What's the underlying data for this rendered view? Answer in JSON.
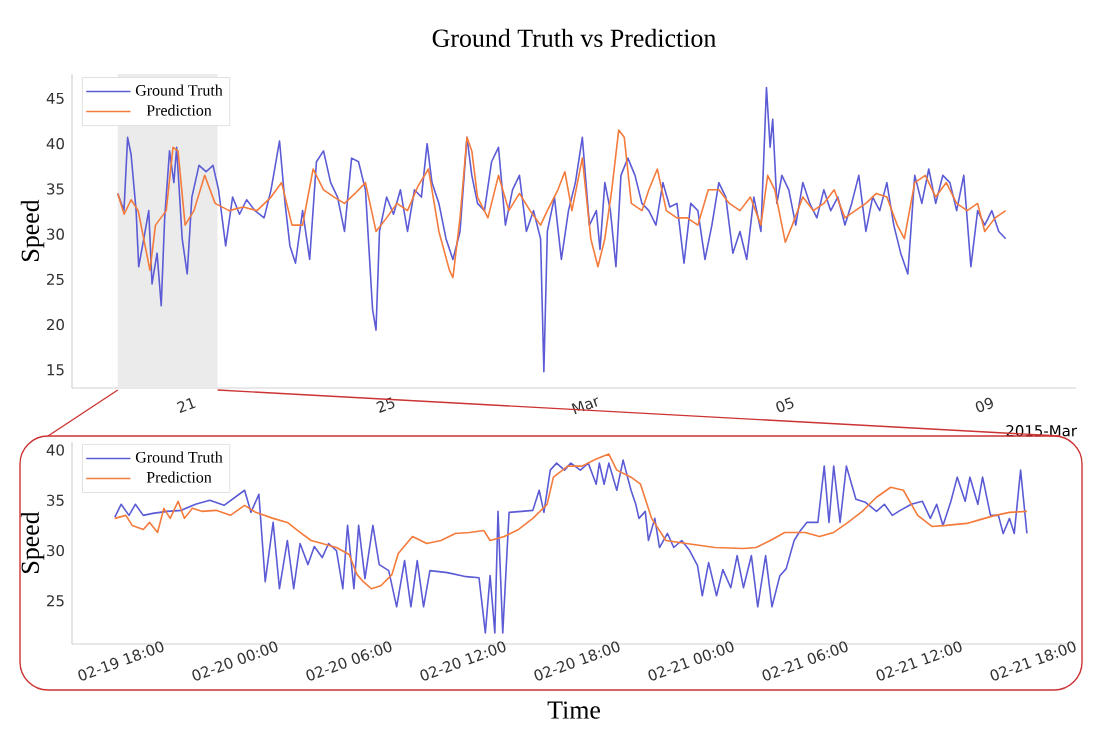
{
  "chart_data": [
    {
      "type": "line",
      "title": "Ground Truth vs Prediction",
      "xlabel": "2015-Mar",
      "ylabel": "Speed",
      "legend": "top left",
      "xlim": [
        "2015-02-18T20:00",
        "2015-03-10T23:00"
      ],
      "ylim": [
        13,
        47.7
      ],
      "xticks": [
        {
          "value": "2015-02-21",
          "label": "21"
        },
        {
          "value": "2015-02-25",
          "label": "25"
        },
        {
          "value": "2015-03-01",
          "label": "Mar"
        },
        {
          "value": "2015-03-05",
          "label": "05"
        },
        {
          "value": "2015-03-09",
          "label": "09"
        }
      ],
      "yticks": [
        15,
        20,
        25,
        30,
        35,
        40,
        45
      ],
      "bands": [
        {
          "axis": "x",
          "from": "2015-02-19T18:00",
          "to": "2015-02-21T18:00",
          "color": "#ebebeb"
        }
      ],
      "series": [
        {
          "name": "Ground Truth",
          "color": "#5b5bd6",
          "x": [
            "2015-02-19T18:00",
            "2015-02-19T21:00",
            "2015-02-19T22:45",
            "2015-02-20T00:25",
            "2015-02-20T02:50",
            "2015-02-20T04:05",
            "2015-02-20T07:10",
            "2015-02-20T08:55",
            "2015-02-20T10:30",
            "2015-02-20T12:55",
            "2015-02-20T14:55",
            "2015-02-20T16:35",
            "2015-02-20T18:55",
            "2015-02-20T21:00",
            "2015-02-20T22:20",
            "2015-02-21T01:00",
            "2015-02-21T03:25",
            "2015-02-21T05:40",
            "2015-02-21T09:05",
            "2015-02-21T12:30",
            "2015-02-21T15:50",
            "2015-02-21T18:30",
            "2015-02-21T21:55",
            "2015-02-22T01:15",
            "2015-02-22T04:35",
            "2015-02-22T08:00",
            "2015-02-22T12:00",
            "2015-02-22T16:25",
            "2015-02-22T19:45",
            "2015-02-22T23:50",
            "2015-02-23T02:30",
            "2015-02-23T04:50",
            "2015-02-23T07:30",
            "2015-02-23T10:55",
            "2015-02-23T14:20",
            "2015-02-23T17:35",
            "2015-02-23T21:00",
            "2015-02-24T00:25",
            "2015-02-24T03:45",
            "2015-02-24T07:05",
            "2015-02-24T10:30",
            "2015-02-24T13:50",
            "2015-02-24T17:10",
            "2015-02-24T20:35",
            "2015-02-24T22:15",
            "2015-02-24T23:55",
            "2015-02-25T03:20",
            "2015-02-25T06:40",
            "2015-02-25T10:00",
            "2015-02-25T13:25",
            "2015-02-25T16:45",
            "2015-02-25T20:05",
            "2015-02-25T22:50",
            "2015-02-26T01:10",
            "2015-02-26T04:30",
            "2015-02-26T07:55",
            "2015-02-26T11:15",
            "2015-02-26T14:40",
            "2015-02-26T18:00",
            "2015-02-26T20:20",
            "2015-02-26T23:05",
            "2015-02-27T02:25",
            "2015-02-27T05:50",
            "2015-02-27T09:10",
            "2015-02-27T12:30",
            "2015-02-27T15:55",
            "2015-02-27T19:15",
            "2015-02-27T22:35",
            "2015-02-28T02:00",
            "2015-02-28T05:25",
            "2015-02-28T07:00",
            "2015-02-28T08:40",
            "2015-02-28T12:05",
            "2015-02-28T15:25",
            "2015-02-28T18:50",
            "2015-02-28T22:10",
            "2015-03-01T01:30",
            "2015-03-01T03:15",
            "2015-03-01T04:55",
            "2015-03-01T08:15",
            "2015-03-01T10:00",
            "2015-03-01T12:20",
            "2015-03-01T15:00",
            "2015-03-01T17:40",
            "2015-03-01T20:05",
            "2015-03-01T23:25",
            "2015-03-02T02:50",
            "2015-03-02T06:10",
            "2015-03-02T09:30",
            "2015-03-02T12:55",
            "2015-03-02T16:15",
            "2015-03-02T19:35",
            "2015-03-02T23:00",
            "2015-03-03T02:25",
            "2015-03-03T05:40",
            "2015-03-03T09:05",
            "2015-03-03T12:30",
            "2015-03-03T15:50",
            "2015-03-03T19:10",
            "2015-03-03T22:30",
            "2015-03-04T01:55",
            "2015-03-04T05:20",
            "2015-03-04T08:35",
            "2015-03-04T12:00",
            "2015-03-04T15:25",
            "2015-03-04T18:05",
            "2015-03-04T19:50",
            "2015-03-04T21:05",
            "2015-03-04T23:05",
            "2015-03-05T01:30",
            "2015-03-05T04:50",
            "2015-03-05T08:10",
            "2015-03-05T11:35",
            "2015-03-05T14:55",
            "2015-03-05T18:20",
            "2015-03-05T21:40",
            "2015-03-06T01:00",
            "2015-03-06T04:25",
            "2015-03-06T07:50",
            "2015-03-06T11:05",
            "2015-03-06T14:30",
            "2015-03-06T17:55",
            "2015-03-06T21:10",
            "2015-03-07T00:35",
            "2015-03-07T04:00",
            "2015-03-07T07:20",
            "2015-03-07T10:40",
            "2015-03-07T14:05",
            "2015-03-07T17:25",
            "2015-03-07T20:50",
            "2015-03-08T00:10",
            "2015-03-08T03:30",
            "2015-03-08T06:55",
            "2015-03-08T10:20",
            "2015-03-08T13:35",
            "2015-03-08T17:00",
            "2015-03-08T20:25",
            "2015-03-08T23:40",
            "2015-03-09T03:05",
            "2015-03-09T06:30",
            "2015-03-09T09:50",
            "2015-03-09T13:10"
          ],
          "values": [
            34.5,
            32.6,
            40.7,
            38.8,
            32.6,
            26.4,
            30.3,
            32.6,
            24.5,
            27.9,
            22.1,
            31.8,
            39.2,
            35.7,
            39.6,
            29.5,
            25.6,
            34.1,
            37.6,
            36.9,
            37.6,
            34.9,
            28.7,
            34.1,
            32.2,
            33.8,
            32.6,
            31.8,
            34.9,
            40.3,
            33.4,
            28.7,
            26.8,
            32.6,
            27.2,
            38.0,
            39.2,
            35.7,
            34.1,
            30.3,
            38.4,
            38.0,
            34.9,
            21.7,
            19.4,
            30.3,
            34.1,
            32.2,
            34.9,
            30.3,
            34.9,
            34.1,
            40.0,
            35.7,
            33.4,
            29.5,
            27.2,
            30.3,
            40.7,
            36.5,
            33.4,
            32.6,
            38.0,
            39.6,
            31.0,
            34.9,
            36.5,
            30.3,
            32.6,
            29.5,
            14.8,
            30.3,
            34.1,
            27.2,
            32.6,
            35.7,
            40.7,
            35.7,
            31.0,
            32.6,
            28.3,
            35.7,
            32.6,
            26.4,
            36.5,
            38.4,
            36.5,
            33.4,
            32.6,
            31.0,
            35.7,
            33.0,
            33.4,
            26.8,
            33.4,
            32.6,
            27.2,
            31.0,
            35.7,
            34.1,
            27.9,
            30.3,
            27.2,
            34.1,
            30.3,
            46.2,
            39.6,
            42.7,
            33.4,
            36.5,
            34.9,
            31.0,
            35.7,
            33.4,
            31.8,
            34.9,
            32.6,
            34.1,
            31.0,
            33.4,
            36.5,
            30.3,
            34.1,
            32.6,
            35.7,
            31.0,
            27.9,
            25.6,
            36.5,
            33.4,
            37.2,
            33.4,
            36.5,
            35.7,
            32.6,
            36.5,
            26.4,
            32.6,
            31.0,
            32.6,
            30.3,
            29.5
          ]
        },
        {
          "name": "Prediction",
          "color": "#f47b3b",
          "x": [
            "2015-02-19T18:00",
            "2015-02-19T21:05",
            "2015-02-20T00:25",
            "2015-02-20T03:50",
            "2015-02-20T07:10",
            "2015-02-20T09:30",
            "2015-02-20T12:10",
            "2015-02-20T17:20",
            "2015-02-20T20:35",
            "2015-02-20T23:00",
            "2015-02-21T02:25",
            "2015-02-21T06:40",
            "2015-02-21T11:50",
            "2015-02-21T16:50",
            "2015-02-21T23:35",
            "2015-02-22T06:20",
            "2015-02-22T13:00",
            "2015-02-22T19:45",
            "2015-02-23T00:50",
            "2015-02-23T05:50",
            "2015-02-23T10:55",
            "2015-02-23T16:00",
            "2015-02-23T21:00",
            "2015-02-24T02:05",
            "2015-02-24T07:05",
            "2015-02-24T12:10",
            "2015-02-24T17:10",
            "2015-02-24T22:15",
            "2015-02-25T03:20",
            "2015-02-25T08:20",
            "2015-02-25T13:25",
            "2015-02-25T18:25",
            "2015-02-25T23:30",
            "2015-02-26T04:30",
            "2015-02-26T09:35",
            "2015-02-26T11:15",
            "2015-02-26T14:40",
            "2015-02-26T18:00",
            "2015-02-26T20:20",
            "2015-02-26T23:05",
            "2015-02-27T04:05",
            "2015-02-27T09:10",
            "2015-02-27T14:10",
            "2015-02-27T19:15",
            "2015-02-28T00:20",
            "2015-02-28T05:25",
            "2015-02-28T08:40",
            "2015-02-28T13:45",
            "2015-02-28T17:05",
            "2015-02-28T20:30",
            "2015-03-01T01:30",
            "2015-03-01T05:35",
            "2015-03-01T09:00",
            "2015-03-01T12:20",
            "2015-03-01T15:40",
            "2015-03-01T19:00",
            "2015-03-01T21:40",
            "2015-03-02T01:05",
            "2015-03-02T06:10",
            "2015-03-02T09:30",
            "2015-03-02T13:35",
            "2015-03-02T17:55",
            "2015-03-02T23:00",
            "2015-03-03T04:00",
            "2015-03-03T09:05",
            "2015-03-03T14:05",
            "2015-03-03T19:10",
            "2015-03-04T00:15",
            "2015-03-04T05:20",
            "2015-03-04T10:20",
            "2015-03-04T15:25",
            "2015-03-04T18:40",
            "2015-03-04T22:05",
            "2015-03-05T03:10",
            "2015-03-05T06:30",
            "2015-03-05T11:35",
            "2015-03-05T16:35",
            "2015-03-05T21:40",
            "2015-03-06T02:40",
            "2015-03-06T07:50",
            "2015-03-06T12:50",
            "2015-03-06T17:55",
            "2015-03-06T22:55",
            "2015-03-07T04:00",
            "2015-03-07T09:00",
            "2015-03-07T12:25",
            "2015-03-07T17:25",
            "2015-03-07T22:30",
            "2015-03-08T03:30",
            "2015-03-08T08:35",
            "2015-03-08T13:35",
            "2015-03-08T18:40",
            "2015-03-08T23:40",
            "2015-03-09T03:05",
            "2015-03-09T08:05",
            "2015-03-09T13:10"
          ],
          "values": [
            34.5,
            32.2,
            33.8,
            32.6,
            28.7,
            26.0,
            31.0,
            32.6,
            39.6,
            39.2,
            31.0,
            32.6,
            36.5,
            33.4,
            32.6,
            33.0,
            32.6,
            34.1,
            35.7,
            31.0,
            31.0,
            37.2,
            34.9,
            34.1,
            33.4,
            34.5,
            35.7,
            30.3,
            31.8,
            33.4,
            32.6,
            35.3,
            37.2,
            30.3,
            26.0,
            25.2,
            31.8,
            40.7,
            39.2,
            34.1,
            31.8,
            36.5,
            32.6,
            34.5,
            32.6,
            31.0,
            32.6,
            34.9,
            36.9,
            32.6,
            38.4,
            29.5,
            26.4,
            29.5,
            34.9,
            41.5,
            40.7,
            33.4,
            32.6,
            34.9,
            37.2,
            32.6,
            31.8,
            31.8,
            31.0,
            34.9,
            34.9,
            33.4,
            32.6,
            34.1,
            31.0,
            36.5,
            34.9,
            29.1,
            31.0,
            34.1,
            32.6,
            33.4,
            34.9,
            31.8,
            32.6,
            33.4,
            34.5,
            34.1,
            31.0,
            29.5,
            35.7,
            36.5,
            34.1,
            35.7,
            33.4,
            32.6,
            33.4,
            30.3,
            31.8,
            32.6
          ]
        }
      ]
    },
    {
      "type": "line",
      "xlabel": "Time",
      "ylabel": "Speed",
      "legend": "top left",
      "xlim": [
        "2015-02-19T15:45",
        "2015-02-21T20:35"
      ],
      "ylim": [
        20.7,
        40.8
      ],
      "xticks": [
        {
          "value": "2015-02-19T18:00",
          "label": "02-19 18:00"
        },
        {
          "value": "2015-02-20T00:00",
          "label": "02-20 00:00"
        },
        {
          "value": "2015-02-20T06:00",
          "label": "02-20 06:00"
        },
        {
          "value": "2015-02-20T12:00",
          "label": "02-20 12:00"
        },
        {
          "value": "2015-02-20T18:00",
          "label": "02-20 18:00"
        },
        {
          "value": "2015-02-21T00:00",
          "label": "02-21 00:00"
        },
        {
          "value": "2015-02-21T06:00",
          "label": "02-21 06:00"
        },
        {
          "value": "2015-02-21T12:00",
          "label": "02-21 12:00"
        },
        {
          "value": "2015-02-21T18:00",
          "label": "02-21 18:00"
        }
      ],
      "yticks": [
        25,
        30,
        35,
        40
      ],
      "series": [
        {
          "name": "Ground Truth",
          "color": "#5b5bd6",
          "x": [
            "2015-02-19T18:00",
            "2015-02-19T18:20",
            "2015-02-19T18:45",
            "2015-02-19T19:05",
            "2015-02-19T19:30",
            "2015-02-19T20:00",
            "2015-02-19T20:45",
            "2015-02-19T21:30",
            "2015-02-19T22:15",
            "2015-02-19T23:00",
            "2015-02-19T23:45",
            "2015-02-20T00:50",
            "2015-02-20T01:10",
            "2015-02-20T01:35",
            "2015-02-20T01:55",
            "2015-02-20T02:20",
            "2015-02-20T02:40",
            "2015-02-20T03:05",
            "2015-02-20T03:25",
            "2015-02-20T03:45",
            "2015-02-20T04:10",
            "2015-02-20T04:30",
            "2015-02-20T04:55",
            "2015-02-20T05:15",
            "2015-02-20T05:40",
            "2015-02-20T06:00",
            "2015-02-20T06:15",
            "2015-02-20T06:35",
            "2015-02-20T06:50",
            "2015-02-20T07:10",
            "2015-02-20T07:35",
            "2015-02-20T07:55",
            "2015-02-20T08:25",
            "2015-02-20T08:50",
            "2015-02-20T09:15",
            "2015-02-20T09:35",
            "2015-02-20T09:55",
            "2015-02-20T10:15",
            "2015-02-20T10:35",
            "2015-02-20T11:30",
            "2015-02-20T12:30",
            "2015-02-20T13:10",
            "2015-02-20T13:30",
            "2015-02-20T13:45",
            "2015-02-20T14:00",
            "2015-02-20T14:10",
            "2015-02-20T14:25",
            "2015-02-20T14:45",
            "2015-02-20T15:25",
            "2015-02-20T16:00",
            "2015-02-20T16:20",
            "2015-02-20T16:35",
            "2015-02-20T16:55",
            "2015-02-20T17:15",
            "2015-02-20T17:40",
            "2015-02-20T18:00",
            "2015-02-20T18:30",
            "2015-02-20T18:55",
            "2015-02-20T19:20",
            "2015-02-20T19:30",
            "2015-02-20T19:45",
            "2015-02-20T20:00",
            "2015-02-20T20:25",
            "2015-02-20T20:45",
            "2015-02-20T21:10",
            "2015-02-20T21:25",
            "2015-02-20T21:35",
            "2015-02-20T21:55",
            "2015-02-20T22:05",
            "2015-02-20T22:25",
            "2015-02-20T22:40",
            "2015-02-20T23:05",
            "2015-02-20T23:25",
            "2015-02-20T23:50",
            "2015-02-21T00:15",
            "2015-02-21T00:40",
            "2015-02-21T00:55",
            "2015-02-21T01:15",
            "2015-02-21T01:40",
            "2015-02-21T02:00",
            "2015-02-21T02:25",
            "2015-02-21T02:45",
            "2015-02-21T03:05",
            "2015-02-21T03:30",
            "2015-02-21T03:50",
            "2015-02-21T04:15",
            "2015-02-21T04:35",
            "2015-02-21T05:00",
            "2015-02-21T05:20",
            "2015-02-21T05:45",
            "2015-02-21T06:05",
            "2015-02-21T06:25",
            "2015-02-21T07:00",
            "2015-02-21T07:20",
            "2015-02-21T07:35",
            "2015-02-21T07:50",
            "2015-02-21T08:10",
            "2015-02-21T08:30",
            "2015-02-21T09:00",
            "2015-02-21T09:30",
            "2015-02-21T10:05",
            "2015-02-21T10:30",
            "2015-02-21T10:55",
            "2015-02-21T11:20",
            "2015-02-21T11:55",
            "2015-02-21T12:30",
            "2015-02-21T12:55",
            "2015-02-21T13:15",
            "2015-02-21T13:35",
            "2015-02-21T14:00",
            "2015-02-21T14:20",
            "2015-02-21T14:45",
            "2015-02-21T15:00",
            "2015-02-21T15:25",
            "2015-02-21T15:40",
            "2015-02-21T16:05",
            "2015-02-21T16:30",
            "2015-02-21T16:45",
            "2015-02-21T17:05",
            "2015-02-21T17:20",
            "2015-02-21T17:40",
            "2015-02-21T18:00"
          ],
          "values": [
            33.3,
            34.6,
            33.5,
            34.6,
            33.5,
            33.7,
            33.9,
            34.0,
            34.6,
            35.0,
            34.5,
            36.0,
            33.8,
            35.6,
            26.9,
            32.8,
            26.2,
            31.0,
            26.2,
            30.7,
            28.6,
            30.4,
            29.3,
            30.7,
            30.0,
            26.2,
            32.5,
            26.2,
            32.5,
            27.2,
            32.5,
            28.6,
            28.0,
            24.4,
            29.0,
            24.4,
            29.0,
            24.4,
            28.0,
            27.8,
            27.4,
            27.3,
            21.8,
            27.5,
            21.8,
            33.9,
            21.8,
            33.8,
            33.9,
            34.0,
            36.0,
            33.8,
            38.0,
            38.7,
            38.0,
            38.7,
            38.0,
            38.7,
            36.6,
            38.7,
            36.6,
            38.7,
            36.0,
            39.0,
            36.0,
            34.6,
            33.2,
            33.9,
            31.0,
            33.2,
            30.3,
            31.7,
            30.3,
            31.0,
            30.0,
            28.5,
            25.5,
            28.8,
            25.5,
            28.1,
            26.3,
            29.5,
            26.3,
            29.5,
            24.4,
            29.5,
            24.4,
            27.5,
            28.2,
            31.0,
            32.0,
            32.8,
            32.8,
            38.4,
            32.8,
            38.4,
            32.8,
            38.4,
            35.1,
            34.8,
            33.9,
            34.6,
            33.5,
            34.0,
            34.6,
            34.9,
            33.2,
            34.6,
            32.5,
            34.9,
            37.3,
            34.9,
            37.3,
            34.6,
            37.3,
            33.5,
            33.5,
            31.7,
            33.2,
            31.7,
            38.0,
            31.7
          ]
        },
        {
          "name": "Prediction",
          "color": "#f47b3b",
          "x": [
            "2015-02-19T18:00",
            "2015-02-19T18:35",
            "2015-02-19T18:55",
            "2015-02-19T19:30",
            "2015-02-19T19:50",
            "2015-02-19T20:15",
            "2015-02-19T20:35",
            "2015-02-19T20:55",
            "2015-02-19T21:20",
            "2015-02-19T21:40",
            "2015-02-19T22:05",
            "2015-02-19T22:35",
            "2015-02-19T23:20",
            "2015-02-20T00:05",
            "2015-02-20T00:50",
            "2015-02-20T01:25",
            "2015-02-20T02:20",
            "2015-02-20T03:05",
            "2015-02-20T03:45",
            "2015-02-20T04:20",
            "2015-02-20T04:55",
            "2015-02-20T05:40",
            "2015-02-20T06:20",
            "2015-02-20T06:45",
            "2015-02-20T07:05",
            "2015-02-20T07:30",
            "2015-02-20T08:00",
            "2015-02-20T08:35",
            "2015-02-20T08:55",
            "2015-02-20T09:40",
            "2015-02-20T10:25",
            "2015-02-20T11:10",
            "2015-02-20T11:55",
            "2015-02-20T12:40",
            "2015-02-20T13:25",
            "2015-02-20T13:45",
            "2015-02-20T14:30",
            "2015-02-20T15:15",
            "2015-02-20T16:00",
            "2015-02-20T16:45",
            "2015-02-20T17:05",
            "2015-02-20T17:50",
            "2015-02-20T18:35",
            "2015-02-20T19:20",
            "2015-02-20T20:00",
            "2015-02-20T20:25",
            "2015-02-20T21:10",
            "2015-02-20T21:40",
            "2015-02-20T22:15",
            "2015-02-20T23:00",
            "2015-02-21T00:05",
            "2015-02-21T01:35",
            "2015-02-21T03:05",
            "2015-02-21T03:45",
            "2015-02-21T04:30",
            "2015-02-21T05:15",
            "2015-02-21T06:20",
            "2015-02-21T07:05",
            "2015-02-21T07:50",
            "2015-02-21T08:35",
            "2015-02-21T09:20",
            "2015-02-21T10:05",
            "2015-02-21T10:50",
            "2015-02-21T11:30",
            "2015-02-21T12:15",
            "2015-02-21T13:00",
            "2015-02-21T13:45",
            "2015-02-21T14:50",
            "2015-02-21T15:35",
            "2015-02-21T16:20",
            "2015-02-21T17:05",
            "2015-02-21T18:00"
          ],
          "values": [
            33.2,
            33.5,
            32.5,
            32.1,
            32.8,
            31.8,
            34.2,
            33.2,
            34.9,
            33.2,
            34.2,
            33.9,
            34.0,
            33.5,
            34.5,
            33.8,
            33.2,
            32.8,
            31.8,
            31.0,
            30.7,
            30.3,
            29.6,
            27.6,
            26.9,
            26.2,
            26.5,
            27.6,
            29.7,
            31.4,
            30.7,
            31.0,
            31.7,
            31.8,
            32.0,
            31.0,
            31.4,
            32.1,
            33.2,
            34.6,
            37.3,
            38.4,
            38.4,
            39.1,
            39.6,
            38.0,
            37.3,
            36.6,
            33.2,
            31.0,
            30.7,
            30.3,
            30.2,
            30.3,
            31.0,
            31.8,
            31.8,
            31.4,
            31.8,
            32.8,
            33.9,
            35.3,
            36.3,
            36.0,
            33.5,
            32.4,
            32.5,
            32.7,
            33.1,
            33.5,
            33.8,
            33.9
          ]
        }
      ]
    }
  ]
}
